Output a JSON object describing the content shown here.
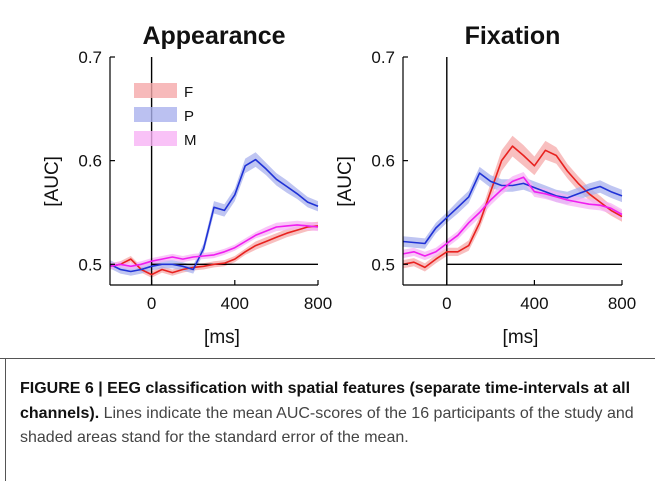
{
  "chart_data": [
    {
      "type": "line",
      "title": "Appearance",
      "xlabel": "[ms]",
      "ylabel": "[AUC]",
      "xlim": [
        -200,
        800
      ],
      "ylim": [
        0.48,
        0.7
      ],
      "xticks": [
        "0",
        "400",
        "800"
      ],
      "yticks": [
        "0.5",
        "0.6",
        "0.7"
      ],
      "reference_line_y": 0.5,
      "reference_line_x": 0,
      "legend_position": "top-left",
      "x": [
        -200,
        -150,
        -100,
        -50,
        0,
        50,
        100,
        150,
        200,
        250,
        300,
        350,
        400,
        450,
        500,
        550,
        600,
        650,
        700,
        750,
        800
      ],
      "series": [
        {
          "name": "F",
          "color": "#e8221f",
          "band": "#f5a9aa",
          "values": [
            0.498,
            0.5,
            0.505,
            0.495,
            0.49,
            0.495,
            0.492,
            0.495,
            0.497,
            0.498,
            0.5,
            0.501,
            0.505,
            0.512,
            0.518,
            0.522,
            0.526,
            0.53,
            0.533,
            0.536,
            0.537
          ],
          "se": [
            0.003,
            0.003,
            0.003,
            0.003,
            0.003,
            0.003,
            0.003,
            0.003,
            0.003,
            0.003,
            0.003,
            0.003,
            0.003,
            0.003,
            0.004,
            0.004,
            0.004,
            0.004,
            0.004,
            0.004,
            0.004
          ]
        },
        {
          "name": "P",
          "color": "#1f32d6",
          "band": "#aab2ee",
          "values": [
            0.5,
            0.495,
            0.493,
            0.495,
            0.498,
            0.5,
            0.5,
            0.498,
            0.495,
            0.515,
            0.555,
            0.552,
            0.567,
            0.595,
            0.601,
            0.592,
            0.582,
            0.575,
            0.568,
            0.56,
            0.556
          ],
          "se": [
            0.004,
            0.004,
            0.004,
            0.004,
            0.004,
            0.004,
            0.004,
            0.004,
            0.004,
            0.005,
            0.006,
            0.006,
            0.006,
            0.007,
            0.007,
            0.006,
            0.006,
            0.006,
            0.005,
            0.005,
            0.005
          ]
        },
        {
          "name": "M",
          "color": "#f01ef0",
          "band": "#f7b3f5",
          "values": [
            0.498,
            0.5,
            0.498,
            0.5,
            0.503,
            0.505,
            0.507,
            0.505,
            0.507,
            0.508,
            0.509,
            0.512,
            0.516,
            0.522,
            0.528,
            0.532,
            0.536,
            0.537,
            0.538,
            0.537,
            0.536
          ],
          "se": [
            0.003,
            0.003,
            0.003,
            0.003,
            0.003,
            0.003,
            0.003,
            0.003,
            0.003,
            0.003,
            0.003,
            0.003,
            0.003,
            0.003,
            0.003,
            0.004,
            0.004,
            0.004,
            0.004,
            0.004,
            0.004
          ]
        }
      ]
    },
    {
      "type": "line",
      "title": "Fixation",
      "xlabel": "[ms]",
      "ylabel": "[AUC]",
      "xlim": [
        -200,
        800
      ],
      "ylim": [
        0.48,
        0.7
      ],
      "xticks": [
        "0",
        "400",
        "800"
      ],
      "yticks": [
        "0.5",
        "0.6",
        "0.7"
      ],
      "reference_line_y": 0.5,
      "reference_line_x": 0,
      "x": [
        -200,
        -150,
        -100,
        -50,
        0,
        50,
        100,
        150,
        200,
        250,
        300,
        350,
        400,
        450,
        500,
        550,
        600,
        650,
        700,
        750,
        800
      ],
      "series": [
        {
          "name": "F",
          "color": "#e8221f",
          "band": "#f5a9aa",
          "values": [
            0.5,
            0.502,
            0.497,
            0.505,
            0.512,
            0.512,
            0.518,
            0.54,
            0.57,
            0.6,
            0.614,
            0.605,
            0.595,
            0.61,
            0.605,
            0.59,
            0.578,
            0.568,
            0.56,
            0.552,
            0.546
          ],
          "se": [
            0.004,
            0.004,
            0.004,
            0.004,
            0.004,
            0.004,
            0.005,
            0.006,
            0.008,
            0.01,
            0.01,
            0.01,
            0.009,
            0.009,
            0.008,
            0.007,
            0.007,
            0.006,
            0.006,
            0.005,
            0.005
          ]
        },
        {
          "name": "P",
          "color": "#1f32d6",
          "band": "#aab2ee",
          "values": [
            0.522,
            0.521,
            0.52,
            0.535,
            0.545,
            0.555,
            0.565,
            0.588,
            0.58,
            0.576,
            0.576,
            0.578,
            0.574,
            0.57,
            0.566,
            0.564,
            0.568,
            0.572,
            0.575,
            0.57,
            0.566
          ],
          "se": [
            0.005,
            0.005,
            0.005,
            0.005,
            0.005,
            0.006,
            0.006,
            0.006,
            0.006,
            0.006,
            0.006,
            0.006,
            0.006,
            0.006,
            0.006,
            0.006,
            0.006,
            0.006,
            0.006,
            0.006,
            0.006
          ]
        },
        {
          "name": "M",
          "color": "#f01ef0",
          "band": "#f7b3f5",
          "values": [
            0.51,
            0.512,
            0.508,
            0.512,
            0.52,
            0.528,
            0.54,
            0.55,
            0.562,
            0.572,
            0.58,
            0.584,
            0.57,
            0.568,
            0.565,
            0.562,
            0.56,
            0.558,
            0.557,
            0.554,
            0.548
          ],
          "se": [
            0.004,
            0.004,
            0.004,
            0.004,
            0.004,
            0.004,
            0.005,
            0.005,
            0.005,
            0.005,
            0.005,
            0.005,
            0.005,
            0.005,
            0.005,
            0.005,
            0.005,
            0.005,
            0.005,
            0.005,
            0.005
          ]
        }
      ]
    }
  ],
  "caption": {
    "bold": "FIGURE 6 | EEG classification with spatial features (separate time-intervals at all channels).",
    "text": " Lines indicate the mean AUC-scores of the 16 participants of the study and shaded areas stand for the standard error of the mean."
  }
}
